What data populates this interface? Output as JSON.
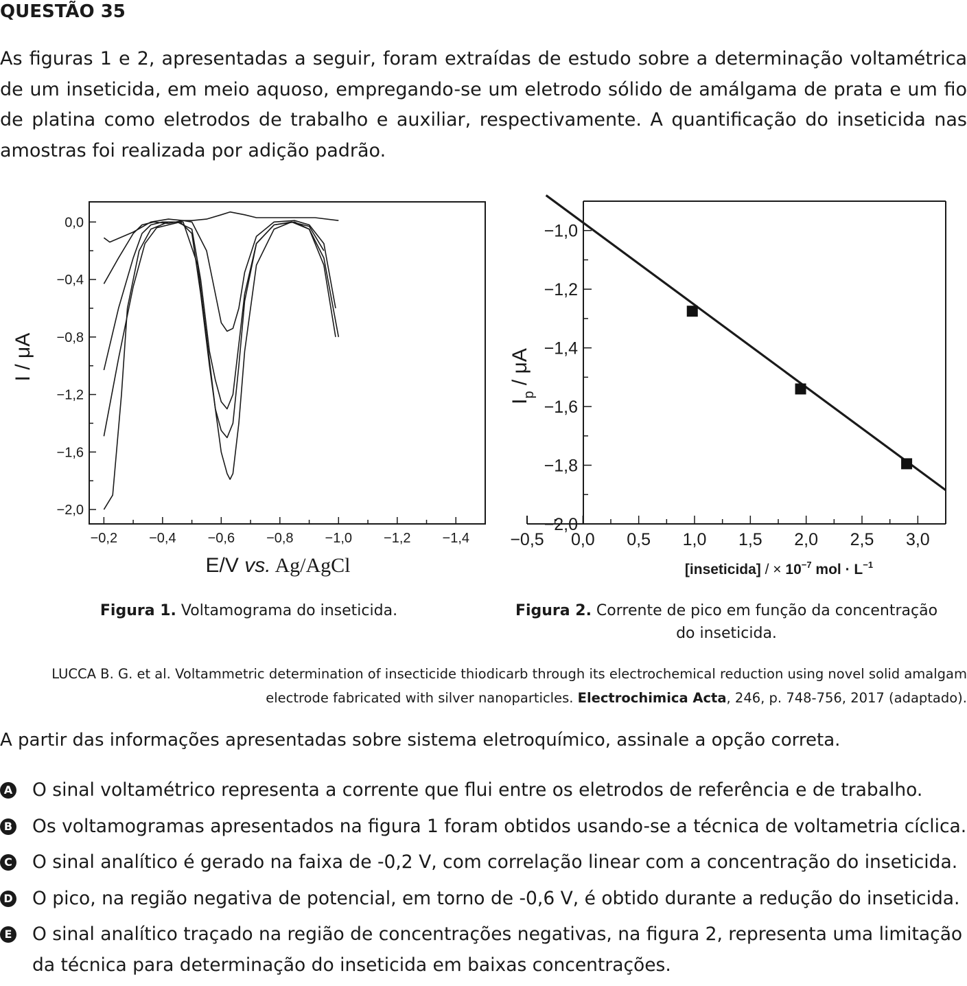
{
  "question": {
    "title": "QUESTÃO 35",
    "stem": "As figuras 1 e 2, apresentadas a seguir, foram extraídas de estudo sobre a determinação voltamétrica de um inseticida, em meio aquoso, empregando-se um eletrodo sólido de amálgama de prata e um fio de platina como eletrodos de trabalho e auxiliar, respectivamente. A quantificação do inseticida nas amostras foi realizada por adição padrão."
  },
  "figure1": {
    "ylabel": "I / μA",
    "xlabel_prefix": "E/V ",
    "xlabel_italic": "vs.",
    "xlabel_suffix": " Ag/AgCl",
    "caption_label": "Figura 1.",
    "caption_text": " Voltamograma do inseticida."
  },
  "figure2": {
    "ylabel_main": "I",
    "ylabel_sub": "p",
    "ylabel_rest": " / μA",
    "xlabel_bold1": "[inseticida]",
    "xlabel_mid": " / × ",
    "xlabel_bold2": "10",
    "xlabel_exp1": "−7",
    "xlabel_bold3": " mol · L",
    "xlabel_exp2": "−1",
    "caption_label": "Figura 2.",
    "caption_text": " Corrente de pico em função da concentração do inseticida."
  },
  "reference": {
    "text": "LUCCA B. G. et al. Voltammetric determination of insecticide thiodicarb through its electrochemical reduction using novel solid amalgam electrode fabricated with silver nanoparticles. ",
    "journal": "Electrochimica Acta",
    "details": ", 246, p. 748-756, 2017 (adaptado)."
  },
  "prompt": "A partir das informações apresentadas sobre sistema eletroquímico, assinale a opção correta.",
  "options": [
    {
      "letter": "A",
      "text": "O sinal voltamétrico representa a corrente que flui entre os eletrodos de referência e de trabalho."
    },
    {
      "letter": "B",
      "text": "Os voltamogramas apresentados na figura 1 foram obtidos usando-se a técnica de voltametria cíclica."
    },
    {
      "letter": "C",
      "text": "O sinal analítico é gerado na faixa de -0,2 V, com correlação linear com a concentração do inseticida."
    },
    {
      "letter": "D",
      "text": "O pico, na região negativa de potencial, em torno de -0,6 V, é obtido durante a redução do inseticida."
    },
    {
      "letter": "E",
      "text": "O sinal analítico traçado na região de concentrações negativas, na figura 2, representa uma limitação da técnica para determinação do inseticida em baixas concentrações."
    }
  ],
  "chart_data": [
    {
      "type": "line",
      "x_ticks": [
        "−0,2",
        "−0,4",
        "−0,6",
        "−0,8",
        "−1,0",
        "−1,2",
        "−1,4"
      ],
      "y_ticks": [
        "0,0",
        "−0,4",
        "−0,8",
        "−1,2",
        "−1,6",
        "−2,0"
      ],
      "xlim": [
        -0.15,
        -1.5
      ],
      "ylim": [
        0.14,
        -2.1
      ],
      "grid": false,
      "series": [
        {
          "x": [
            -0.2,
            -0.22,
            -0.3,
            -0.36,
            -0.42,
            -0.47,
            -0.5,
            -0.55,
            -0.6,
            -0.63,
            -0.68,
            -0.72,
            -0.78,
            -0.85,
            -0.92,
            -1.0
          ],
          "y": [
            -0.11,
            -0.14,
            -0.07,
            0.0,
            0.02,
            0.01,
            0.01,
            0.02,
            0.05,
            0.07,
            0.05,
            0.03,
            0.03,
            0.03,
            0.03,
            0.01
          ]
        },
        {
          "x": [
            -0.2,
            -0.25,
            -0.3,
            -0.33,
            -0.37,
            -0.42,
            -0.47,
            -0.5,
            -0.55,
            -0.58,
            -0.6,
            -0.62,
            -0.64,
            -0.66,
            -0.68,
            -0.72,
            -0.78,
            -0.85,
            -0.9,
            -0.95,
            -0.99
          ],
          "y": [
            -0.43,
            -0.25,
            -0.08,
            -0.02,
            0.0,
            -0.01,
            0.01,
            0.0,
            -0.2,
            -0.5,
            -0.7,
            -0.76,
            -0.74,
            -0.6,
            -0.35,
            -0.1,
            0.0,
            0.01,
            -0.02,
            -0.15,
            -0.6
          ]
        },
        {
          "x": [
            -0.2,
            -0.25,
            -0.3,
            -0.33,
            -0.36,
            -0.4,
            -0.45,
            -0.5,
            -0.53,
            -0.56,
            -0.58,
            -0.6,
            -0.62,
            -0.64,
            -0.66,
            -0.68,
            -0.72,
            -0.78,
            -0.85,
            -0.9,
            -0.95,
            -0.99
          ],
          "y": [
            -1.03,
            -0.6,
            -0.25,
            -0.08,
            -0.02,
            0.0,
            0.0,
            -0.05,
            -0.4,
            -0.9,
            -1.1,
            -1.25,
            -1.3,
            -1.2,
            -0.85,
            -0.5,
            -0.15,
            -0.02,
            0.0,
            -0.05,
            -0.3,
            -0.8
          ]
        },
        {
          "x": [
            -0.2,
            -0.25,
            -0.3,
            -0.34,
            -0.38,
            -0.42,
            -0.46,
            -0.5,
            -0.53,
            -0.56,
            -0.58,
            -0.6,
            -0.62,
            -0.64,
            -0.66,
            -0.68,
            -0.72,
            -0.78,
            -0.84,
            -0.9,
            -0.95
          ],
          "y": [
            -1.49,
            -0.95,
            -0.45,
            -0.15,
            -0.04,
            -0.02,
            0.0,
            -0.08,
            -0.5,
            -1.0,
            -1.3,
            -1.45,
            -1.5,
            -1.4,
            -1.0,
            -0.55,
            -0.15,
            -0.02,
            0.0,
            -0.03,
            -0.2
          ]
        },
        {
          "x": [
            -0.2,
            -0.23,
            -0.26,
            -0.28,
            -0.32,
            -0.36,
            -0.42,
            -0.47,
            -0.52,
            -0.55,
            -0.58,
            -0.6,
            -0.62,
            -0.63,
            -0.64,
            -0.66,
            -0.68,
            -0.72,
            -0.78,
            -0.84,
            -0.9,
            -0.95,
            -1.0
          ],
          "y": [
            -2.0,
            -1.9,
            -1.2,
            -0.6,
            -0.2,
            -0.05,
            0.0,
            0.0,
            -0.3,
            -0.8,
            -1.3,
            -1.6,
            -1.75,
            -1.79,
            -1.75,
            -1.4,
            -0.9,
            -0.3,
            -0.05,
            0.0,
            -0.05,
            -0.25,
            -0.8
          ]
        }
      ]
    },
    {
      "type": "scatter",
      "xlabel": "[inseticida] / × 10−7 mol · L−1",
      "ylabel": "Ip / μA",
      "x_ticks": [
        "−0,5",
        "0,0",
        "0,5",
        "1,0",
        "1,5",
        "2,0",
        "2,5",
        "3,0"
      ],
      "y_ticks": [
        "−2,0",
        "−1,8",
        "−1,6",
        "−1,4",
        "−1,2",
        "−1,0"
      ],
      "xlim": [
        -0.5,
        3.25
      ],
      "ylim": [
        -0.9,
        -2.0
      ],
      "grid": false,
      "points": [
        {
          "x": 0.98,
          "y": -1.275
        },
        {
          "x": 1.95,
          "y": -1.54
        },
        {
          "x": 2.9,
          "y": -1.795
        }
      ],
      "fit_line": {
        "x": [
          -0.33,
          3.25
        ],
        "y": [
          -0.88,
          -1.885
        ]
      }
    }
  ]
}
